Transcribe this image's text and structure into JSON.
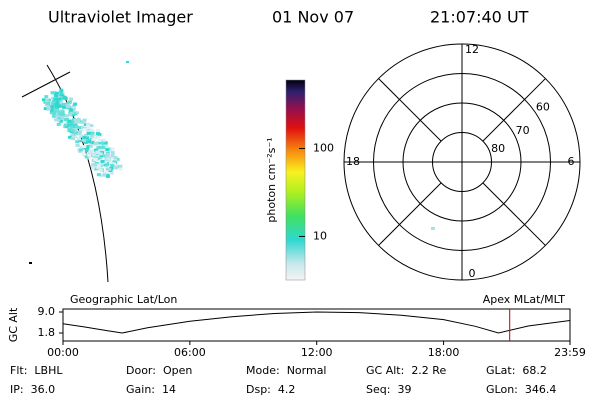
{
  "header": {
    "title": "Ultraviolet Imager",
    "date": "01 Nov 07",
    "time": "21:07:40 UT"
  },
  "colorbar": {
    "label": "photon cm⁻²s⁻¹",
    "scale": "log",
    "clim": [
      3.2,
      600
    ],
    "ticks": [
      10,
      100
    ]
  },
  "polar": {
    "lat_range": [
      90,
      50
    ],
    "lat_ticks": [
      80,
      70,
      60
    ],
    "mlt_ticks": [
      0,
      6,
      12,
      18
    ]
  },
  "orbit": {
    "left_label": "Geographic Lat/Lon",
    "right_label": "Apex MLat/MLT",
    "ylabel": "GC Alt",
    "xlim": [
      0,
      23.98
    ],
    "ylim": [
      1.8,
      9.0
    ],
    "yticks": [
      {
        "value": 9.0,
        "label": "9.0"
      },
      1.8
    ],
    "xticks": [
      {
        "value": 0,
        "label": "00:00"
      },
      {
        "value": 6,
        "label": "06:00"
      },
      {
        "value": 12,
        "label": "12:00"
      },
      {
        "value": 18,
        "label": "18:00"
      },
      {
        "value": 23.98,
        "label": "23:59"
      }
    ],
    "x": [
      0,
      1,
      2,
      2.8,
      4,
      6,
      8,
      10,
      12,
      14,
      16,
      18,
      19.5,
      20.6,
      22,
      23.98
    ],
    "values": [
      5.0,
      3.9,
      2.7,
      1.8,
      3.6,
      5.8,
      7.4,
      8.5,
      9.0,
      8.8,
      7.9,
      6.4,
      4.1,
      1.8,
      4.2,
      6.1
    ],
    "current_time": 21.128
  },
  "status": [
    [
      {
        "label": "Flt:",
        "value": "LBHL"
      },
      {
        "label": "Door:",
        "value": "Open"
      },
      {
        "label": "Mode:",
        "value": "Normal"
      },
      {
        "label": "GC Alt:",
        "value": "2.2 Re"
      },
      {
        "label": "GLat:",
        "value": "68.2"
      }
    ],
    [
      {
        "label": "IP:",
        "value": "36.0"
      },
      {
        "label": "Gain:",
        "value": "14"
      },
      {
        "label": "Dsp:",
        "value": "4.2"
      },
      {
        "label": "Seq:",
        "value": "39"
      },
      {
        "label": "GLon:",
        "value": "346.4"
      }
    ]
  ]
}
